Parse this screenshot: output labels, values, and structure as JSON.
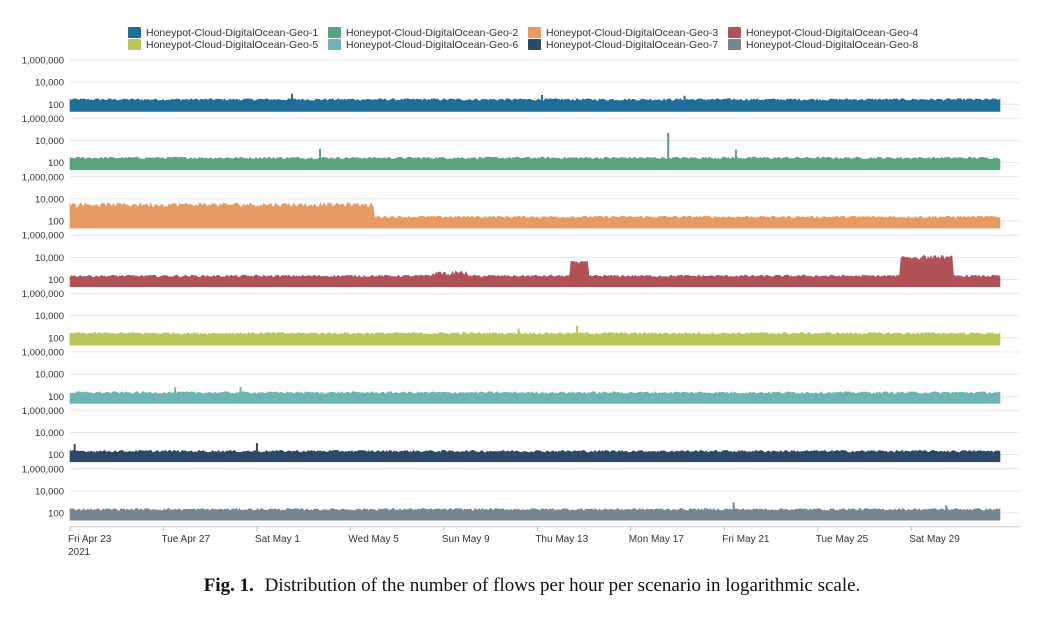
{
  "caption": {
    "label": "Fig. 1.",
    "text": "Distribution of the number of flows per hour per scenario in logarithmic scale."
  },
  "chart_data": {
    "type": "area",
    "yscale": "log",
    "y_tick_labels": [
      "100",
      "10,000",
      "1,000,000"
    ],
    "y_ticks": [
      100,
      10000,
      1000000
    ],
    "x_tick_labels": [
      "Fri Apr 23",
      "Tue Apr 27",
      "Sat May 1",
      "Wed May 5",
      "Sun May 9",
      "Thu May 13",
      "Mon May 17",
      "Fri May 21",
      "Tue May 25",
      "Sat May 29"
    ],
    "x_tick_sublabel": "2021",
    "x_tick_days": [
      0,
      4,
      8,
      12,
      16,
      20,
      24,
      28,
      32,
      36
    ],
    "xlim_days": [
      0,
      39.8
    ],
    "grid": true,
    "legend_position": "top",
    "series": [
      {
        "name": "Honeypot-Cloud-DigitalOcean-Geo-1",
        "color": "#1f6e99",
        "baseline": 260,
        "spikes": [
          {
            "day": 9.5,
            "value": 900
          },
          {
            "day": 20.2,
            "value": 700
          },
          {
            "day": 26.3,
            "value": 600
          }
        ]
      },
      {
        "name": "Honeypot-Cloud-DigitalOcean-Geo-2",
        "color": "#5aa37f",
        "baseline": 260,
        "spikes": [
          {
            "day": 10.7,
            "value": 1800
          },
          {
            "day": 25.6,
            "value": 50000
          },
          {
            "day": 28.5,
            "value": 1500
          }
        ]
      },
      {
        "name": "Honeypot-Cloud-DigitalOcean-Geo-3",
        "color": "#e89a63",
        "baseline": 230,
        "segments": [
          {
            "from": 0,
            "to": 13,
            "value": 3000
          }
        ]
      },
      {
        "name": "Honeypot-Cloud-DigitalOcean-Geo-4",
        "color": "#b05256",
        "baseline": 200,
        "segments": [
          {
            "from": 15.5,
            "to": 17,
            "value": 380
          },
          {
            "from": 21.4,
            "to": 22.2,
            "value": 3000
          },
          {
            "from": 35.5,
            "to": 37.8,
            "value": 10000
          }
        ]
      },
      {
        "name": "Honeypot-Cloud-DigitalOcean-Geo-5",
        "color": "#b8c65a",
        "baseline": 250,
        "spikes": [
          {
            "day": 19.2,
            "value": 700
          },
          {
            "day": 21.7,
            "value": 1200
          }
        ]
      },
      {
        "name": "Honeypot-Cloud-DigitalOcean-Geo-6",
        "color": "#6cb5b3",
        "baseline": 210,
        "spikes": [
          {
            "day": 4.5,
            "value": 650
          },
          {
            "day": 7.3,
            "value": 700
          }
        ]
      },
      {
        "name": "Honeypot-Cloud-DigitalOcean-Geo-7",
        "color": "#2d4869",
        "baseline": 200,
        "spikes": [
          {
            "day": 0.2,
            "value": 900
          },
          {
            "day": 8.0,
            "value": 1100
          }
        ]
      },
      {
        "name": "Honeypot-Cloud-DigitalOcean-Geo-8",
        "color": "#76858f",
        "baseline": 210,
        "spikes": [
          {
            "day": 28.4,
            "value": 900
          },
          {
            "day": 37.5,
            "value": 500
          }
        ]
      }
    ]
  }
}
